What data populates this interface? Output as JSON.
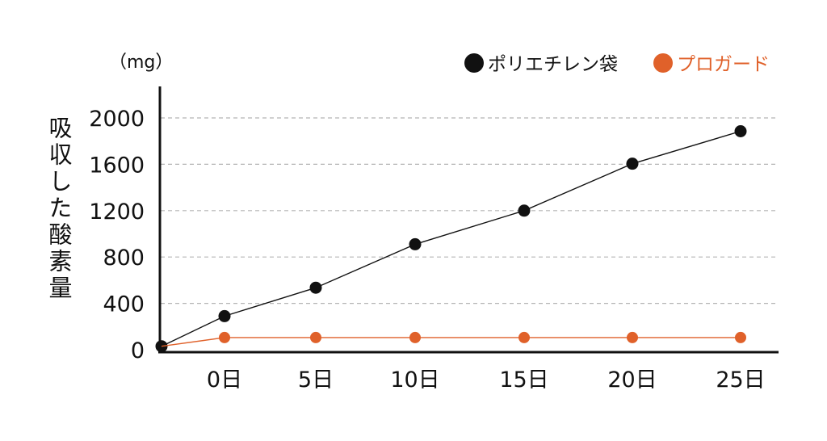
{
  "chart_data": {
    "type": "line",
    "unit_label": "（mg）",
    "ylabel": "吸収した酸素量",
    "x_categories": [
      "0日",
      "5日",
      "10日",
      "15日",
      "20日",
      "25日"
    ],
    "y_ticks": [
      0,
      400,
      800,
      1200,
      1600,
      2000
    ],
    "ylim": [
      0,
      2100
    ],
    "grid": true,
    "legend_position": "top-right",
    "series": [
      {
        "name": "ポリエチレン袋",
        "color": "#111111",
        "start_value": 30,
        "values": [
          290,
          535,
          910,
          1200,
          1605,
          1885
        ]
      },
      {
        "name": "プロガード",
        "color": "#e0612a",
        "start_value": 30,
        "values": [
          105,
          105,
          105,
          105,
          105,
          105
        ]
      }
    ]
  }
}
